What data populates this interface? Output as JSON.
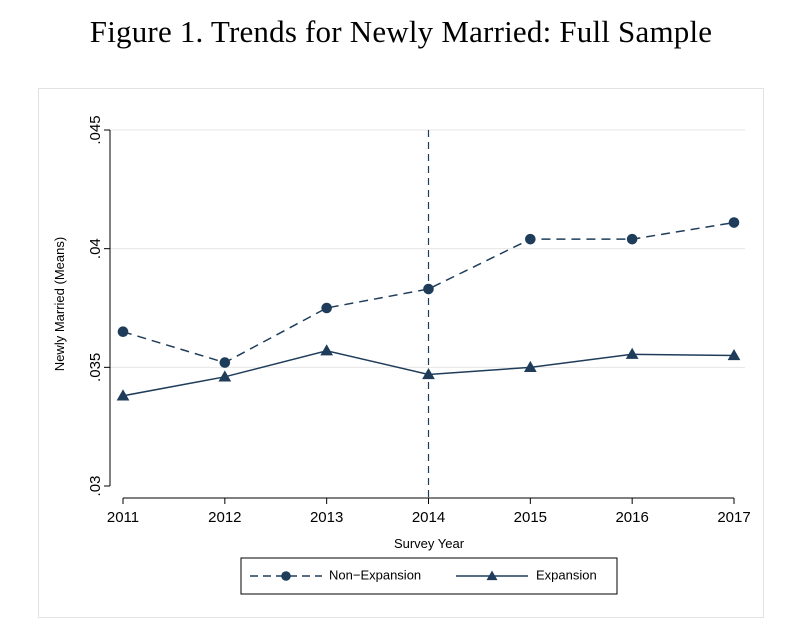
{
  "figure": {
    "title": "Figure 1. Trends for Newly Married: Full Sample"
  },
  "colors": {
    "series": "#1f3d5a",
    "grid": "#e6e6e6",
    "axis": "#000000"
  },
  "chart_data": {
    "type": "line",
    "x": [
      2011,
      2012,
      2013,
      2014,
      2015,
      2016,
      2017
    ],
    "x_tick_labels": [
      "2011",
      "2012",
      "2013",
      "2014",
      "2015",
      "2016",
      "2017"
    ],
    "xlabel": "Survey Year",
    "ylabel": "Newly Married (Means)",
    "ylim": [
      0.03,
      0.045
    ],
    "y_ticks": [
      0.03,
      0.035,
      0.04,
      0.045
    ],
    "y_tick_labels": [
      ".03",
      ".035",
      ".04",
      ".045"
    ],
    "grid": "horizontal",
    "vertical_reference_line": 2014,
    "legend_position": "bottom",
    "series": [
      {
        "name": "Non−Expansion",
        "marker": "circle",
        "line_style": "dashed",
        "values": [
          0.0365,
          0.0352,
          0.0375,
          0.0383,
          0.0404,
          0.0404,
          0.0411
        ]
      },
      {
        "name": "Expansion",
        "marker": "triangle",
        "line_style": "solid",
        "values": [
          0.0338,
          0.0346,
          0.0357,
          0.0347,
          0.035,
          0.03555,
          0.0355
        ]
      }
    ]
  }
}
